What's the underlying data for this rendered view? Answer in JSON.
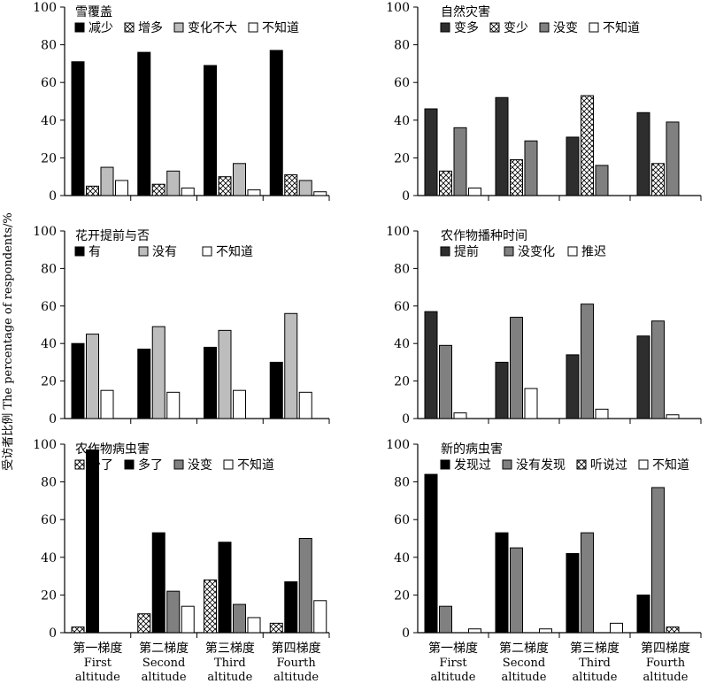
{
  "figure": {
    "ylabel": "受访者比例 The percentage of respondents/%",
    "xcategories_cn": [
      "第一梯度",
      "第二梯度",
      "第三梯度",
      "第四梯度"
    ],
    "xcategories_en_1": [
      "First",
      "Second",
      "Third",
      "Fourth"
    ],
    "xcategories_en_2": [
      "altitude",
      "altitude",
      "altitude",
      "altitude"
    ]
  },
  "chart_data": [
    {
      "type": "bar",
      "title": "雪覆盖",
      "categories": [
        "第一梯度 First altitude",
        "第二梯度 Second altitude",
        "第三梯度 Third altitude",
        "第四梯度 Fourth altitude"
      ],
      "series": [
        {
          "name": "减少",
          "fill": "solid-black",
          "values": [
            71,
            76,
            69,
            77
          ]
        },
        {
          "name": "增多",
          "fill": "hatch",
          "values": [
            5,
            6,
            10,
            11
          ]
        },
        {
          "name": "变化不大",
          "fill": "light-gray",
          "values": [
            15,
            13,
            17,
            8
          ]
        },
        {
          "name": "不知道",
          "fill": "white",
          "values": [
            8,
            4,
            3,
            2
          ]
        }
      ],
      "ylim": [
        0,
        100
      ],
      "yticks": [
        "0",
        "20",
        "40",
        "60",
        "80",
        "100"
      ]
    },
    {
      "type": "bar",
      "title": "自然灾害",
      "categories": [
        "第一梯度 First altitude",
        "第二梯度 Second altitude",
        "第三梯度 Third altitude",
        "第四梯度 Fourth altitude"
      ],
      "series": [
        {
          "name": "变多",
          "fill": "dark-gray",
          "values": [
            46,
            52,
            31,
            44
          ]
        },
        {
          "name": "变少",
          "fill": "hatch",
          "values": [
            13,
            19,
            53,
            17
          ]
        },
        {
          "name": "没变",
          "fill": "mid-gray",
          "values": [
            36,
            29,
            16,
            39
          ]
        },
        {
          "name": "不知道",
          "fill": "white",
          "values": [
            4,
            0,
            0,
            0
          ]
        }
      ],
      "ylim": [
        0,
        100
      ],
      "yticks": [
        "0",
        "20",
        "40",
        "60",
        "80",
        "100"
      ]
    },
    {
      "type": "bar",
      "title": "花开提前与否",
      "categories": [
        "第一梯度 First altitude",
        "第二梯度 Second altitude",
        "第三梯度 Third altitude",
        "第四梯度 Fourth altitude"
      ],
      "series": [
        {
          "name": "有",
          "fill": "solid-black",
          "values": [
            40,
            37,
            38,
            30
          ]
        },
        {
          "name": "没有",
          "fill": "light-gray",
          "values": [
            45,
            49,
            47,
            56
          ]
        },
        {
          "name": "不知道",
          "fill": "white",
          "values": [
            15,
            14,
            15,
            14
          ]
        }
      ],
      "ylim": [
        0,
        100
      ],
      "yticks": [
        "0",
        "20",
        "40",
        "60",
        "80",
        "100"
      ]
    },
    {
      "type": "bar",
      "title": "农作物播种时间",
      "categories": [
        "第一梯度 First altitude",
        "第二梯度 Second altitude",
        "第三梯度 Third altitude",
        "第四梯度 Fourth altitude"
      ],
      "series": [
        {
          "name": "提前",
          "fill": "dark-gray",
          "values": [
            57,
            30,
            34,
            44
          ]
        },
        {
          "name": "没变化",
          "fill": "mid-gray",
          "values": [
            39,
            54,
            61,
            52
          ]
        },
        {
          "name": "推迟",
          "fill": "white",
          "values": [
            3,
            16,
            5,
            2
          ]
        }
      ],
      "ylim": [
        0,
        100
      ],
      "yticks": [
        "0",
        "20",
        "40",
        "60",
        "80",
        "100"
      ]
    },
    {
      "type": "bar",
      "title": "农作物病虫害",
      "categories": [
        "第一梯度 First altitude",
        "第二梯度 Second altitude",
        "第三梯度 Third altitude",
        "第四梯度 Fourth altitude"
      ],
      "series": [
        {
          "name": "少了",
          "fill": "hatch",
          "values": [
            3,
            10,
            28,
            5
          ]
        },
        {
          "name": "多了",
          "fill": "solid-black",
          "values": [
            97,
            53,
            48,
            27
          ]
        },
        {
          "name": "没变",
          "fill": "mid-gray",
          "values": [
            0,
            22,
            15,
            50
          ]
        },
        {
          "name": "不知道",
          "fill": "white",
          "values": [
            0,
            14,
            8,
            17
          ]
        }
      ],
      "ylim": [
        0,
        100
      ],
      "yticks": [
        "0",
        "20",
        "40",
        "60",
        "80",
        "100"
      ]
    },
    {
      "type": "bar",
      "title": "新的病虫害",
      "categories": [
        "第一梯度 First altitude",
        "第二梯度 Second altitude",
        "第三梯度 Third altitude",
        "第四梯度 Fourth altitude"
      ],
      "series": [
        {
          "name": "发现过",
          "fill": "solid-black",
          "values": [
            84,
            53,
            42,
            20
          ]
        },
        {
          "name": "没有发现",
          "fill": "mid-gray",
          "values": [
            14,
            45,
            53,
            77
          ]
        },
        {
          "name": "听说过",
          "fill": "hatch",
          "values": [
            0,
            0,
            0,
            3
          ]
        },
        {
          "name": "不知道",
          "fill": "white",
          "values": [
            2,
            2,
            5,
            0
          ]
        }
      ],
      "ylim": [
        0,
        100
      ],
      "yticks": [
        "0",
        "20",
        "40",
        "60",
        "80",
        "100"
      ]
    }
  ]
}
